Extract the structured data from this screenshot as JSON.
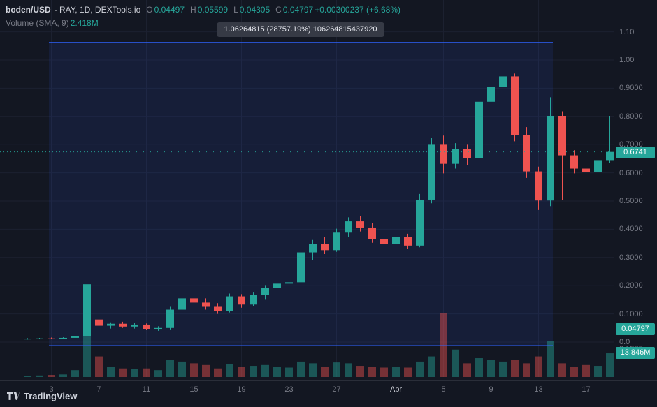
{
  "header": {
    "symbol": "boden/USD",
    "descriptor": "- RAY, 1D, DEXTools.io",
    "ohlc": {
      "o_label": "O",
      "o": "0.04497",
      "h_label": "H",
      "h": "0.05599",
      "l_label": "L",
      "l": "0.04305",
      "c_label": "C",
      "c": "0.04797",
      "change": "+0.00300237 (+6.68%)"
    },
    "indicator": {
      "name": "Volume (SMA, 9)",
      "value": "2.418M"
    }
  },
  "tooltip": {
    "text": "1.06264815 (28757.19%) 106264815437920"
  },
  "logo": {
    "text": "TradingView"
  },
  "colors": {
    "up": "#26a69a",
    "down": "#ef5350",
    "accent_blue": "#2e62fe",
    "selection_fill": "rgba(45,98,255,0.10)",
    "text": "#d1d4dc",
    "muted": "#787b86",
    "bg": "#131722",
    "grid": "#1c2130",
    "border": "#2a2e39"
  },
  "price_axis": {
    "last_price": {
      "label": "0.6741",
      "value": 0.6741
    },
    "crosshair": {
      "label": "0.04797",
      "value": 0.04797
    },
    "volume_badge": {
      "label": "13.846M",
      "value": 13.846
    },
    "extra_label": "0.1387"
  },
  "chart_data": {
    "type": "candlestick",
    "title": "boden/USD - RAY, 1D, DEXTools.io",
    "interval": "1D",
    "ylim": [
      0,
      1.1
    ],
    "grid": true,
    "last_price": 0.6741,
    "volume_unit": "M",
    "price_ticks": [
      {
        "label": "1.10",
        "value": 1.1
      },
      {
        "label": "1.00",
        "value": 1.0
      },
      {
        "label": "0.9000",
        "value": 0.9
      },
      {
        "label": "0.8000",
        "value": 0.8
      },
      {
        "label": "0.7000",
        "value": 0.7
      },
      {
        "label": "0.6000",
        "value": 0.6
      },
      {
        "label": "0.5000",
        "value": 0.5
      },
      {
        "label": "0.4000",
        "value": 0.4
      },
      {
        "label": "0.3000",
        "value": 0.3
      },
      {
        "label": "0.2000",
        "value": 0.2
      },
      {
        "label": "0.1000",
        "value": 0.1
      },
      {
        "label": "0.0",
        "value": 0.0
      }
    ],
    "time_ticks": [
      {
        "label": "3",
        "index": 2
      },
      {
        "label": "7",
        "index": 6
      },
      {
        "label": "11",
        "index": 10
      },
      {
        "label": "15",
        "index": 14
      },
      {
        "label": "19",
        "index": 18
      },
      {
        "label": "23",
        "index": 22
      },
      {
        "label": "27",
        "index": 26
      },
      {
        "label": "Apr",
        "index": 31,
        "month": true
      },
      {
        "label": "5",
        "index": 35
      },
      {
        "label": "9",
        "index": 39
      },
      {
        "label": "13",
        "index": 43
      },
      {
        "label": "17",
        "index": 47
      }
    ],
    "selection": {
      "start_index": 2,
      "end_index": 44,
      "marker_index": 23,
      "top_price": 1.06264815,
      "bottom_price": 0.0
    },
    "candles": [
      {
        "t": "Mar 1",
        "o": 0.01,
        "h": 0.014,
        "l": 0.009,
        "c": 0.012,
        "v": 0.8
      },
      {
        "t": "Mar 2",
        "o": 0.012,
        "h": 0.015,
        "l": 0.01,
        "c": 0.013,
        "v": 0.9
      },
      {
        "t": "Mar 3",
        "o": 0.013,
        "h": 0.016,
        "l": 0.011,
        "c": 0.012,
        "v": 1.2
      },
      {
        "t": "Mar 4",
        "o": 0.012,
        "h": 0.017,
        "l": 0.011,
        "c": 0.015,
        "v": 1.5
      },
      {
        "t": "Mar 5",
        "o": 0.015,
        "h": 0.024,
        "l": 0.013,
        "c": 0.021,
        "v": 4.0
      },
      {
        "t": "Mar 6",
        "o": 0.021,
        "h": 0.225,
        "l": 0.019,
        "c": 0.205,
        "v": 31.7
      },
      {
        "t": "Mar 7",
        "o": 0.08,
        "h": 0.095,
        "l": 0.05,
        "c": 0.058,
        "v": 12.0
      },
      {
        "t": "Mar 8",
        "o": 0.058,
        "h": 0.07,
        "l": 0.048,
        "c": 0.065,
        "v": 6.0
      },
      {
        "t": "Mar 9",
        "o": 0.065,
        "h": 0.072,
        "l": 0.05,
        "c": 0.055,
        "v": 5.0
      },
      {
        "t": "Mar 10",
        "o": 0.055,
        "h": 0.068,
        "l": 0.048,
        "c": 0.062,
        "v": 4.5
      },
      {
        "t": "Mar 11",
        "o": 0.062,
        "h": 0.066,
        "l": 0.042,
        "c": 0.047,
        "v": 5.0
      },
      {
        "t": "Mar 12",
        "o": 0.047,
        "h": 0.056,
        "l": 0.04,
        "c": 0.05,
        "v": 4.0
      },
      {
        "t": "Mar 13",
        "o": 0.05,
        "h": 0.125,
        "l": 0.045,
        "c": 0.115,
        "v": 10.0
      },
      {
        "t": "Mar 14",
        "o": 0.115,
        "h": 0.165,
        "l": 0.105,
        "c": 0.155,
        "v": 9.0
      },
      {
        "t": "Mar 15",
        "o": 0.155,
        "h": 0.19,
        "l": 0.13,
        "c": 0.14,
        "v": 8.0
      },
      {
        "t": "Mar 16",
        "o": 0.14,
        "h": 0.155,
        "l": 0.115,
        "c": 0.125,
        "v": 7.0
      },
      {
        "t": "Mar 17",
        "o": 0.125,
        "h": 0.138,
        "l": 0.1,
        "c": 0.11,
        "v": 5.0
      },
      {
        "t": "Mar 18",
        "o": 0.11,
        "h": 0.172,
        "l": 0.105,
        "c": 0.162,
        "v": 7.5
      },
      {
        "t": "Mar 19",
        "o": 0.162,
        "h": 0.17,
        "l": 0.122,
        "c": 0.133,
        "v": 6.0
      },
      {
        "t": "Mar 20",
        "o": 0.133,
        "h": 0.178,
        "l": 0.128,
        "c": 0.168,
        "v": 6.5
      },
      {
        "t": "Mar 21",
        "o": 0.168,
        "h": 0.202,
        "l": 0.15,
        "c": 0.192,
        "v": 7.0
      },
      {
        "t": "Mar 22",
        "o": 0.192,
        "h": 0.218,
        "l": 0.18,
        "c": 0.207,
        "v": 6.0
      },
      {
        "t": "Mar 23",
        "o": 0.207,
        "h": 0.222,
        "l": 0.186,
        "c": 0.212,
        "v": 5.5
      },
      {
        "t": "Mar 24",
        "o": 0.212,
        "h": 0.33,
        "l": 0.2,
        "c": 0.318,
        "v": 9.0
      },
      {
        "t": "Mar 25",
        "o": 0.318,
        "h": 0.362,
        "l": 0.292,
        "c": 0.347,
        "v": 8.0
      },
      {
        "t": "Mar 26",
        "o": 0.347,
        "h": 0.372,
        "l": 0.312,
        "c": 0.326,
        "v": 6.0
      },
      {
        "t": "Mar 27",
        "o": 0.326,
        "h": 0.402,
        "l": 0.32,
        "c": 0.388,
        "v": 8.5
      },
      {
        "t": "Mar 28",
        "o": 0.388,
        "h": 0.442,
        "l": 0.372,
        "c": 0.428,
        "v": 8.0
      },
      {
        "t": "Mar 29",
        "o": 0.428,
        "h": 0.448,
        "l": 0.392,
        "c": 0.406,
        "v": 6.5
      },
      {
        "t": "Mar 30",
        "o": 0.406,
        "h": 0.422,
        "l": 0.352,
        "c": 0.366,
        "v": 6.0
      },
      {
        "t": "Mar 31",
        "o": 0.366,
        "h": 0.384,
        "l": 0.332,
        "c": 0.347,
        "v": 5.5
      },
      {
        "t": "Apr 1",
        "o": 0.347,
        "h": 0.382,
        "l": 0.338,
        "c": 0.372,
        "v": 6.0
      },
      {
        "t": "Apr 2",
        "o": 0.372,
        "h": 0.384,
        "l": 0.33,
        "c": 0.342,
        "v": 5.5
      },
      {
        "t": "Apr 3",
        "o": 0.342,
        "h": 0.525,
        "l": 0.336,
        "c": 0.505,
        "v": 9.0
      },
      {
        "t": "Apr 4",
        "o": 0.505,
        "h": 0.725,
        "l": 0.492,
        "c": 0.702,
        "v": 12.0
      },
      {
        "t": "Apr 5",
        "o": 0.702,
        "h": 0.732,
        "l": 0.598,
        "c": 0.632,
        "v": 37.5
      },
      {
        "t": "Apr 6",
        "o": 0.632,
        "h": 0.705,
        "l": 0.615,
        "c": 0.685,
        "v": 16.0
      },
      {
        "t": "Apr 7",
        "o": 0.685,
        "h": 0.702,
        "l": 0.628,
        "c": 0.652,
        "v": 8.0
      },
      {
        "t": "Apr 8",
        "o": 0.652,
        "h": 1.0626,
        "l": 0.64,
        "c": 0.852,
        "v": 11.0
      },
      {
        "t": "Apr 9",
        "o": 0.852,
        "h": 0.932,
        "l": 0.805,
        "c": 0.905,
        "v": 10.0
      },
      {
        "t": "Apr 10",
        "o": 0.905,
        "h": 0.975,
        "l": 0.878,
        "c": 0.942,
        "v": 9.0
      },
      {
        "t": "Apr 11",
        "o": 0.942,
        "h": 0.952,
        "l": 0.712,
        "c": 0.735,
        "v": 10.0
      },
      {
        "t": "Apr 12",
        "o": 0.735,
        "h": 0.762,
        "l": 0.582,
        "c": 0.605,
        "v": 8.0
      },
      {
        "t": "Apr 13",
        "o": 0.605,
        "h": 0.622,
        "l": 0.468,
        "c": 0.502,
        "v": 12.0
      },
      {
        "t": "Apr 14",
        "o": 0.502,
        "h": 0.868,
        "l": 0.482,
        "c": 0.802,
        "v": 21.0
      },
      {
        "t": "Apr 15",
        "o": 0.802,
        "h": 0.818,
        "l": 0.505,
        "c": 0.662,
        "v": 8.0
      },
      {
        "t": "Apr 16",
        "o": 0.662,
        "h": 0.68,
        "l": 0.598,
        "c": 0.615,
        "v": 6.0
      },
      {
        "t": "Apr 17",
        "o": 0.615,
        "h": 0.642,
        "l": 0.585,
        "c": 0.602,
        "v": 7.0
      },
      {
        "t": "Apr 18",
        "o": 0.602,
        "h": 0.662,
        "l": 0.592,
        "c": 0.645,
        "v": 6.5
      },
      {
        "t": "Apr 19",
        "o": 0.645,
        "h": 0.802,
        "l": 0.635,
        "c": 0.6741,
        "v": 13.846
      }
    ]
  }
}
